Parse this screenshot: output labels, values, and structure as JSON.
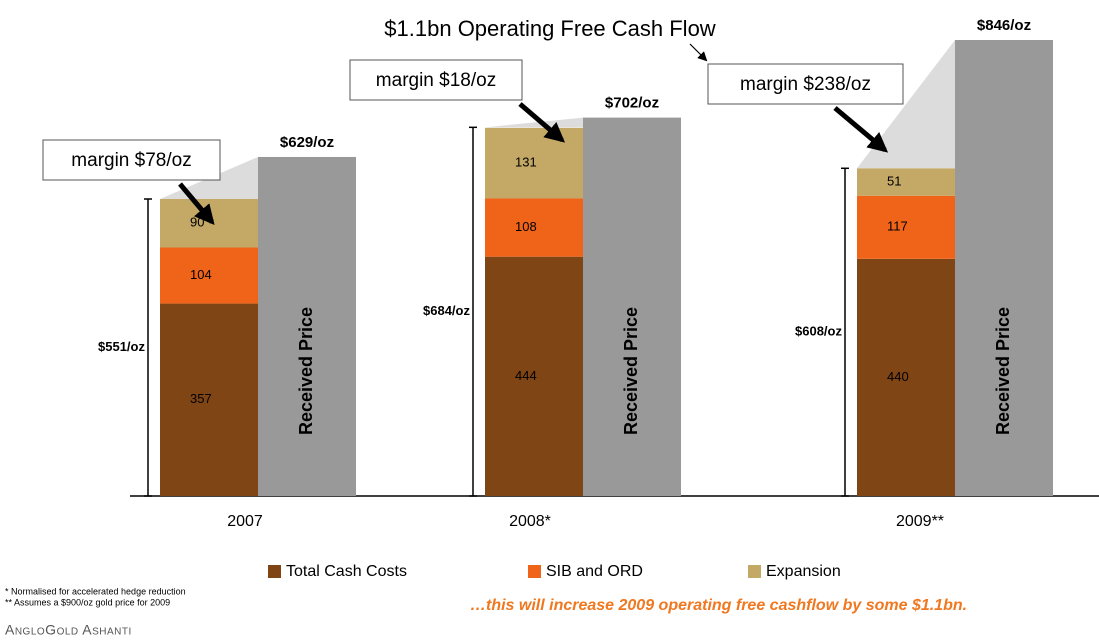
{
  "chart_data": {
    "type": "stacked-bar",
    "title": "$1.1bn Operating Free Cash Flow",
    "categories": [
      "2007",
      "2008*",
      "2009**"
    ],
    "series": [
      {
        "name": "Total Cash Costs",
        "color": "#7f4515",
        "values": [
          357,
          444,
          440
        ]
      },
      {
        "name": "SIB and ORD",
        "color": "#f0641a",
        "values": [
          104,
          108,
          117
        ]
      },
      {
        "name": "Expansion",
        "color": "#c4a866",
        "values": [
          90,
          131,
          51
        ]
      }
    ],
    "totals": {
      "values": [
        551,
        684,
        608
      ],
      "value_labels": [
        "$551/oz",
        "$684/oz",
        "$608/oz"
      ]
    },
    "received_price": {
      "name": "Received Price",
      "color": "#999999",
      "values": [
        629,
        702,
        846
      ],
      "value_labels": [
        "$629/oz",
        "$702/oz",
        "$846/oz"
      ]
    },
    "margins": {
      "values": [
        78,
        18,
        238
      ],
      "value_labels": [
        "margin $78/oz",
        "margin $18/oz",
        "margin $238/oz"
      ]
    },
    "footnotes": [
      "*  Normalised for accelerated hedge reduction",
      "** Assumes a $900/oz gold price for 2009"
    ],
    "tagline": "…this will increase 2009 operating free cashflow by some $1.1bn.",
    "brand": "AngloGold Ashanti"
  }
}
